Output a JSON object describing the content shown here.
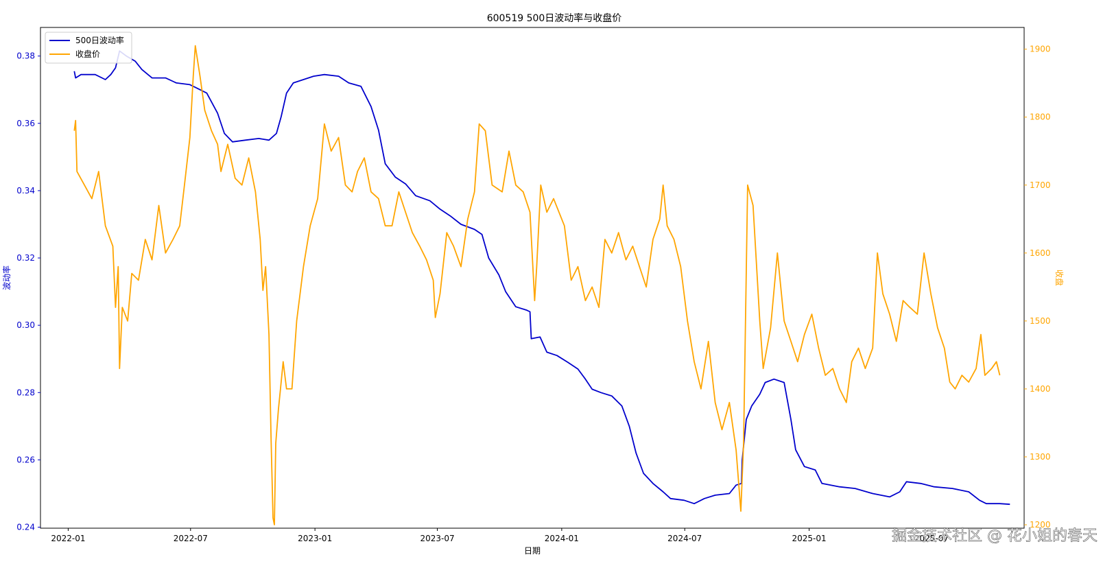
{
  "chart_data": {
    "type": "line",
    "title": "600519 500日波动率与收盘价",
    "xlabel": "日期",
    "ylabel_left": "波动率",
    "ylabel_right": "收盘",
    "x_ticks": [
      "2022-01",
      "2022-07",
      "2023-01",
      "2023-07",
      "2024-01",
      "2024-07",
      "2025-01",
      "2025-07"
    ],
    "x_tick_dates": [
      "2022-01-01",
      "2022-07-01",
      "2023-01-01",
      "2023-07-01",
      "2024-01-01",
      "2024-07-01",
      "2025-01-01",
      "2025-07-01"
    ],
    "xlim": [
      "2021-11-21",
      "2025-11-15"
    ],
    "y_left_ticks": [
      "0.24",
      "0.26",
      "0.28",
      "0.30",
      "0.32",
      "0.34",
      "0.36",
      "0.38"
    ],
    "y_left_lim": [
      0.2397,
      0.3885
    ],
    "y_right_ticks": [
      "1200",
      "1300",
      "1400",
      "1500",
      "1600",
      "1700",
      "1800",
      "1900"
    ],
    "y_right_lim": [
      1195,
      1932
    ],
    "legend_placement": "top-left",
    "grid": false,
    "series": [
      {
        "name": "500日波动率",
        "axis": "left",
        "color": "#0000cc",
        "points": [
          [
            "2022-01-10",
            0.3755
          ],
          [
            "2022-01-12",
            0.3735
          ],
          [
            "2022-01-20",
            0.3745
          ],
          [
            "2022-02-10",
            0.3745
          ],
          [
            "2022-02-25",
            0.373
          ],
          [
            "2022-03-05",
            0.3745
          ],
          [
            "2022-03-12",
            0.3765
          ],
          [
            "2022-03-18",
            0.3815
          ],
          [
            "2022-03-28",
            0.38
          ],
          [
            "2022-04-10",
            0.3785
          ],
          [
            "2022-04-20",
            0.376
          ],
          [
            "2022-05-05",
            0.3735
          ],
          [
            "2022-05-25",
            0.3735
          ],
          [
            "2022-06-10",
            0.372
          ],
          [
            "2022-06-30",
            0.3715
          ],
          [
            "2022-07-10",
            0.3705
          ],
          [
            "2022-07-25",
            0.369
          ],
          [
            "2022-08-10",
            0.363
          ],
          [
            "2022-08-20",
            0.357
          ],
          [
            "2022-09-01",
            0.3545
          ],
          [
            "2022-09-20",
            0.355
          ],
          [
            "2022-10-10",
            0.3555
          ],
          [
            "2022-10-25",
            0.355
          ],
          [
            "2022-11-05",
            0.357
          ],
          [
            "2022-11-12",
            0.362
          ],
          [
            "2022-11-20",
            0.369
          ],
          [
            "2022-11-30",
            0.372
          ],
          [
            "2022-12-15",
            0.373
          ],
          [
            "2022-12-30",
            0.374
          ],
          [
            "2023-01-15",
            0.3745
          ],
          [
            "2023-02-05",
            0.374
          ],
          [
            "2023-02-20",
            0.372
          ],
          [
            "2023-03-10",
            0.371
          ],
          [
            "2023-03-25",
            0.365
          ],
          [
            "2023-04-05",
            0.358
          ],
          [
            "2023-04-15",
            0.348
          ],
          [
            "2023-04-30",
            0.344
          ],
          [
            "2023-05-15",
            0.342
          ],
          [
            "2023-05-30",
            0.3385
          ],
          [
            "2023-06-20",
            0.337
          ],
          [
            "2023-07-05",
            0.3345
          ],
          [
            "2023-07-20",
            0.3325
          ],
          [
            "2023-08-05",
            0.33
          ],
          [
            "2023-08-25",
            0.3285
          ],
          [
            "2023-09-05",
            0.327
          ],
          [
            "2023-09-15",
            0.32
          ],
          [
            "2023-09-30",
            0.315
          ],
          [
            "2023-10-10",
            0.31
          ],
          [
            "2023-10-25",
            0.3055
          ],
          [
            "2023-11-10",
            0.3045
          ],
          [
            "2023-11-15",
            0.304
          ],
          [
            "2023-11-17",
            0.296
          ],
          [
            "2023-11-30",
            0.2965
          ],
          [
            "2023-12-10",
            0.292
          ],
          [
            "2023-12-25",
            0.291
          ],
          [
            "2024-01-10",
            0.289
          ],
          [
            "2024-01-25",
            0.287
          ],
          [
            "2024-02-05",
            0.284
          ],
          [
            "2024-02-15",
            0.281
          ],
          [
            "2024-02-28",
            0.28
          ],
          [
            "2024-03-15",
            0.279
          ],
          [
            "2024-03-30",
            0.276
          ],
          [
            "2024-04-10",
            0.27
          ],
          [
            "2024-04-20",
            0.262
          ],
          [
            "2024-05-01",
            0.256
          ],
          [
            "2024-05-15",
            0.253
          ],
          [
            "2024-05-30",
            0.2505
          ],
          [
            "2024-06-10",
            0.2485
          ],
          [
            "2024-06-30",
            0.248
          ],
          [
            "2024-07-15",
            0.247
          ],
          [
            "2024-07-30",
            0.2485
          ],
          [
            "2024-08-15",
            0.2495
          ],
          [
            "2024-09-05",
            0.25
          ],
          [
            "2024-09-15",
            0.2525
          ],
          [
            "2024-09-23",
            0.253
          ],
          [
            "2024-09-24",
            0.26
          ],
          [
            "2024-09-30",
            0.272
          ],
          [
            "2024-10-08",
            0.276
          ],
          [
            "2024-10-20",
            0.2795
          ],
          [
            "2024-10-28",
            0.283
          ],
          [
            "2024-11-10",
            0.284
          ],
          [
            "2024-11-25",
            0.283
          ],
          [
            "2024-12-05",
            0.272
          ],
          [
            "2024-12-12",
            0.263
          ],
          [
            "2024-12-25",
            0.258
          ],
          [
            "2025-01-10",
            0.257
          ],
          [
            "2025-01-20",
            0.253
          ],
          [
            "2025-02-15",
            0.252
          ],
          [
            "2025-03-10",
            0.2515
          ],
          [
            "2025-04-05",
            0.25
          ],
          [
            "2025-04-30",
            0.249
          ],
          [
            "2025-05-15",
            0.2505
          ],
          [
            "2025-05-25",
            0.2535
          ],
          [
            "2025-06-15",
            0.253
          ],
          [
            "2025-07-05",
            0.252
          ],
          [
            "2025-08-01",
            0.2515
          ],
          [
            "2025-08-25",
            0.2505
          ],
          [
            "2025-09-10",
            0.248
          ],
          [
            "2025-09-20",
            0.247
          ],
          [
            "2025-10-10",
            0.247
          ],
          [
            "2025-10-25",
            0.2468
          ]
        ]
      },
      {
        "name": "收盘价",
        "axis": "right",
        "color": "#ffa500",
        "points": [
          [
            "2022-01-10",
            1780
          ],
          [
            "2022-01-12",
            1795
          ],
          [
            "2022-01-14",
            1720
          ],
          [
            "2022-01-25",
            1700
          ],
          [
            "2022-02-05",
            1680
          ],
          [
            "2022-02-15",
            1720
          ],
          [
            "2022-02-25",
            1640
          ],
          [
            "2022-03-08",
            1610
          ],
          [
            "2022-03-12",
            1520
          ],
          [
            "2022-03-16",
            1580
          ],
          [
            "2022-03-18",
            1430
          ],
          [
            "2022-03-22",
            1520
          ],
          [
            "2022-03-30",
            1500
          ],
          [
            "2022-04-05",
            1570
          ],
          [
            "2022-04-15",
            1560
          ],
          [
            "2022-04-25",
            1620
          ],
          [
            "2022-05-05",
            1590
          ],
          [
            "2022-05-15",
            1670
          ],
          [
            "2022-05-25",
            1600
          ],
          [
            "2022-06-05",
            1620
          ],
          [
            "2022-06-15",
            1640
          ],
          [
            "2022-06-22",
            1700
          ],
          [
            "2022-06-30",
            1770
          ],
          [
            "2022-07-05",
            1860
          ],
          [
            "2022-07-08",
            1905
          ],
          [
            "2022-07-15",
            1860
          ],
          [
            "2022-07-22",
            1810
          ],
          [
            "2022-08-01",
            1780
          ],
          [
            "2022-08-10",
            1760
          ],
          [
            "2022-08-15",
            1720
          ],
          [
            "2022-08-25",
            1760
          ],
          [
            "2022-09-05",
            1710
          ],
          [
            "2022-09-15",
            1700
          ],
          [
            "2022-09-25",
            1740
          ],
          [
            "2022-10-05",
            1690
          ],
          [
            "2022-10-12",
            1620
          ],
          [
            "2022-10-16",
            1545
          ],
          [
            "2022-10-20",
            1580
          ],
          [
            "2022-10-25",
            1480
          ],
          [
            "2022-10-28",
            1330
          ],
          [
            "2022-10-31",
            1210
          ],
          [
            "2022-11-02",
            1200
          ],
          [
            "2022-11-04",
            1320
          ],
          [
            "2022-11-08",
            1370
          ],
          [
            "2022-11-11",
            1400
          ],
          [
            "2022-11-15",
            1440
          ],
          [
            "2022-11-20",
            1400
          ],
          [
            "2022-11-28",
            1400
          ],
          [
            "2022-12-05",
            1500
          ],
          [
            "2022-12-15",
            1580
          ],
          [
            "2022-12-25",
            1640
          ],
          [
            "2023-01-05",
            1680
          ],
          [
            "2023-01-15",
            1790
          ],
          [
            "2023-01-25",
            1750
          ],
          [
            "2023-02-05",
            1770
          ],
          [
            "2023-02-15",
            1700
          ],
          [
            "2023-02-25",
            1690
          ],
          [
            "2023-03-05",
            1720
          ],
          [
            "2023-03-15",
            1740
          ],
          [
            "2023-03-25",
            1690
          ],
          [
            "2023-04-05",
            1680
          ],
          [
            "2023-04-15",
            1640
          ],
          [
            "2023-04-25",
            1640
          ],
          [
            "2023-05-05",
            1690
          ],
          [
            "2023-05-15",
            1660
          ],
          [
            "2023-05-25",
            1630
          ],
          [
            "2023-06-05",
            1610
          ],
          [
            "2023-06-15",
            1590
          ],
          [
            "2023-06-25",
            1560
          ],
          [
            "2023-06-28",
            1505
          ],
          [
            "2023-07-05",
            1540
          ],
          [
            "2023-07-15",
            1630
          ],
          [
            "2023-07-25",
            1610
          ],
          [
            "2023-08-05",
            1580
          ],
          [
            "2023-08-15",
            1650
          ],
          [
            "2023-08-25",
            1690
          ],
          [
            "2023-09-01",
            1790
          ],
          [
            "2023-09-10",
            1780
          ],
          [
            "2023-09-20",
            1700
          ],
          [
            "2023-10-05",
            1690
          ],
          [
            "2023-10-15",
            1750
          ],
          [
            "2023-10-25",
            1700
          ],
          [
            "2023-11-05",
            1690
          ],
          [
            "2023-11-15",
            1660
          ],
          [
            "2023-11-22",
            1530
          ],
          [
            "2023-11-25",
            1580
          ],
          [
            "2023-12-01",
            1700
          ],
          [
            "2023-12-10",
            1660
          ],
          [
            "2023-12-20",
            1680
          ],
          [
            "2024-01-05",
            1640
          ],
          [
            "2024-01-15",
            1560
          ],
          [
            "2024-01-25",
            1580
          ],
          [
            "2024-02-05",
            1530
          ],
          [
            "2024-02-15",
            1550
          ],
          [
            "2024-02-25",
            1520
          ],
          [
            "2024-03-05",
            1620
          ],
          [
            "2024-03-15",
            1600
          ],
          [
            "2024-03-25",
            1630
          ],
          [
            "2024-04-05",
            1590
          ],
          [
            "2024-04-15",
            1610
          ],
          [
            "2024-04-25",
            1580
          ],
          [
            "2024-05-05",
            1550
          ],
          [
            "2024-05-15",
            1620
          ],
          [
            "2024-05-25",
            1650
          ],
          [
            "2024-05-30",
            1700
          ],
          [
            "2024-06-05",
            1640
          ],
          [
            "2024-06-15",
            1620
          ],
          [
            "2024-06-25",
            1580
          ],
          [
            "2024-07-05",
            1500
          ],
          [
            "2024-07-15",
            1440
          ],
          [
            "2024-07-25",
            1400
          ],
          [
            "2024-08-05",
            1470
          ],
          [
            "2024-08-15",
            1380
          ],
          [
            "2024-08-25",
            1340
          ],
          [
            "2024-09-05",
            1380
          ],
          [
            "2024-09-15",
            1310
          ],
          [
            "2024-09-22",
            1220
          ],
          [
            "2024-09-26",
            1320
          ],
          [
            "2024-10-02",
            1700
          ],
          [
            "2024-10-10",
            1670
          ],
          [
            "2024-10-20",
            1500
          ],
          [
            "2024-10-25",
            1430
          ],
          [
            "2024-11-05",
            1490
          ],
          [
            "2024-11-15",
            1600
          ],
          [
            "2024-11-25",
            1500
          ],
          [
            "2024-12-05",
            1470
          ],
          [
            "2024-12-15",
            1440
          ],
          [
            "2024-12-25",
            1480
          ],
          [
            "2025-01-05",
            1510
          ],
          [
            "2025-01-15",
            1460
          ],
          [
            "2025-01-25",
            1420
          ],
          [
            "2025-02-05",
            1430
          ],
          [
            "2025-02-15",
            1400
          ],
          [
            "2025-02-25",
            1380
          ],
          [
            "2025-03-05",
            1440
          ],
          [
            "2025-03-15",
            1460
          ],
          [
            "2025-03-25",
            1430
          ],
          [
            "2025-04-05",
            1460
          ],
          [
            "2025-04-12",
            1600
          ],
          [
            "2025-04-20",
            1540
          ],
          [
            "2025-04-30",
            1510
          ],
          [
            "2025-05-10",
            1470
          ],
          [
            "2025-05-20",
            1530
          ],
          [
            "2025-05-30",
            1520
          ],
          [
            "2025-06-10",
            1510
          ],
          [
            "2025-06-20",
            1600
          ],
          [
            "2025-06-30",
            1540
          ],
          [
            "2025-07-10",
            1490
          ],
          [
            "2025-07-20",
            1460
          ],
          [
            "2025-07-28",
            1410
          ],
          [
            "2025-08-05",
            1400
          ],
          [
            "2025-08-15",
            1420
          ],
          [
            "2025-08-25",
            1410
          ],
          [
            "2025-09-05",
            1430
          ],
          [
            "2025-09-12",
            1480
          ],
          [
            "2025-09-18",
            1420
          ],
          [
            "2025-09-28",
            1430
          ],
          [
            "2025-10-05",
            1440
          ],
          [
            "2025-10-10",
            1420
          ]
        ]
      }
    ]
  },
  "watermark": "掘金技术社区 @ 花小姐的春天"
}
